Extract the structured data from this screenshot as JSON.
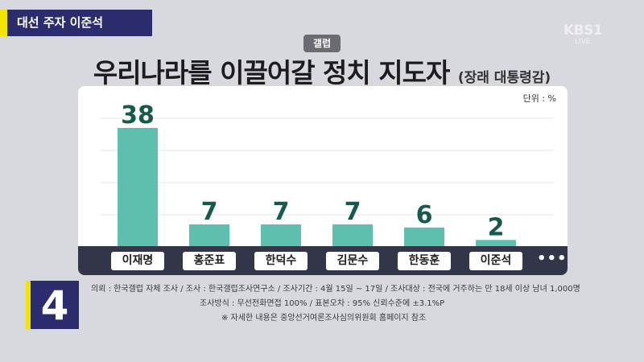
{
  "top_tag": "대선 주자 이준석",
  "broadcaster": {
    "logo": "KBS",
    "logo_number": "1",
    "live": "LIVE"
  },
  "pollster": "갤럽",
  "title": "우리나라를 이끌어갈 정치 지도자",
  "title_sub": "(장래 대통령감)",
  "unit_label": "단위 : %",
  "more_label": "•••",
  "segment_number": "4",
  "footnote": {
    "line1": "의뢰 : 한국갤럽 자체 조사 / 조사 : 한국갤럽조사연구소 / 조사기간 :  4월 15일 ~ 17일 / 조사대상 : 전국에 거주하는 만 18세 이상 남녀 1,000명",
    "line2": "조사방식 : 무선전화면접 100% / 표본오차 : 95% 신뢰수준에 ±3.1%P",
    "line3": "※ 자세한 내용은 중앙선거여론조사심의위원회 홈페이지 참조"
  },
  "chart_data": {
    "type": "bar",
    "categories": [
      "이재명",
      "홍준표",
      "한덕수",
      "김문수",
      "한동훈",
      "이준석"
    ],
    "values": [
      38,
      7,
      7,
      7,
      6,
      2
    ],
    "ylim": [
      0,
      45
    ],
    "grid": true,
    "bar_color": "#5ebfae",
    "label_color": "#175a4b"
  }
}
